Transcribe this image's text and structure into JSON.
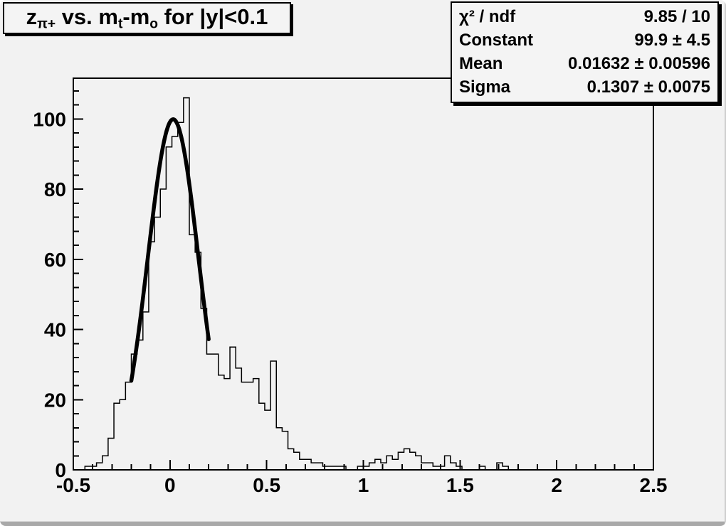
{
  "title": {
    "full_text": "z_{π+} vs. m_{t}-m_{o} for |y|<0.1",
    "parts": [
      {
        "t": "z"
      },
      {
        "t": "π+",
        "sub": true
      },
      {
        "t": " vs. m"
      },
      {
        "t": "t",
        "sub": true
      },
      {
        "t": "-m"
      },
      {
        "t": "o",
        "sub": true
      },
      {
        "t": " for |y|<0.1"
      }
    ]
  },
  "stats": {
    "rows": [
      {
        "label": "χ² / ndf",
        "value": "9.85 / 10"
      },
      {
        "label": "Constant",
        "value": "99.9 ± 4.5"
      },
      {
        "label": "Mean",
        "value": "0.01632 ± 0.00596"
      },
      {
        "label": "Sigma",
        "value": "0.1307 ± 0.0075"
      }
    ]
  },
  "colors": {
    "canvas_bg": "#f2f2f2",
    "box_bg": "#f4f4f4",
    "line": "#000000",
    "shadow": "#000000",
    "bevel": "#a9a9a9"
  },
  "chart_data": {
    "type": "bar",
    "subtype": "step-histogram-with-gaussian-fit",
    "title": "z_{π+} vs. m_{t}-m_{o} for |y|<0.1",
    "xlabel": "",
    "ylabel": "",
    "xlim": [
      -0.5,
      2.5
    ],
    "ylim": [
      0,
      111.6
    ],
    "grid": false,
    "legend": "none",
    "x_major_ticks": [
      -0.5,
      0,
      0.5,
      1,
      1.5,
      2,
      2.5
    ],
    "x_tick_labels": [
      "-0.5",
      "0",
      "0.5",
      "1",
      "1.5",
      "2",
      "2.5"
    ],
    "x_minor_step": 0.1,
    "y_major_ticks": [
      0,
      20,
      40,
      60,
      80,
      100
    ],
    "y_tick_labels": [
      "0",
      "20",
      "40",
      "60",
      "80",
      "100"
    ],
    "y_minor_step": 4,
    "bins": {
      "start": -0.5,
      "width": 0.03,
      "counts": [
        0,
        0,
        1,
        1,
        2,
        4,
        9,
        19,
        20,
        25,
        33,
        37,
        45,
        65,
        72,
        80,
        92,
        95,
        99,
        106,
        67,
        62,
        46,
        33,
        33,
        27,
        26,
        35,
        29,
        25,
        25,
        26,
        19,
        17,
        31,
        12,
        11,
        6,
        5,
        3,
        3,
        2,
        2,
        1,
        1,
        1,
        1,
        0,
        0,
        1,
        1,
        2,
        3,
        2,
        4,
        3,
        5,
        6,
        5,
        4,
        2,
        2,
        1,
        1,
        4,
        2,
        1,
        0,
        0,
        0,
        1,
        0,
        0,
        2,
        1,
        0,
        0,
        0,
        0,
        0,
        0,
        0,
        0,
        0,
        0,
        0,
        0,
        0,
        0,
        0,
        0,
        0,
        0,
        0,
        0,
        0,
        0,
        0,
        0,
        0
      ]
    },
    "fit": {
      "type": "gaussian",
      "constant": 99.9,
      "mean": 0.01632,
      "sigma": 0.1307,
      "range": [
        -0.2,
        0.2
      ]
    }
  }
}
